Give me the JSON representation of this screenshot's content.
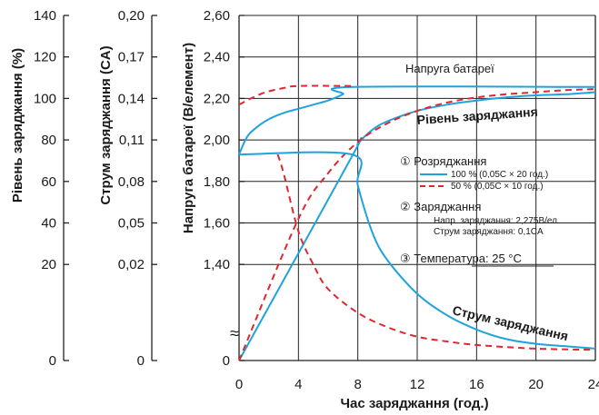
{
  "chart_data": {
    "type": "line",
    "title": "",
    "xlabel": "Час заряджання (год.)",
    "x_ticks": [
      "0",
      "4",
      "8",
      "12",
      "16",
      "20",
      "24"
    ],
    "xlim": [
      0,
      24
    ],
    "grid": true,
    "axes": [
      {
        "key": "capacity",
        "label": "Рівень заряджання (%)",
        "ticks": [
          [
            "140",
            2.6
          ],
          [
            "120",
            2.4
          ],
          [
            "100",
            2.2
          ],
          [
            "80",
            2.0
          ],
          [
            "60",
            1.8
          ],
          [
            "40",
            1.6
          ],
          [
            "20",
            1.4
          ],
          [
            "0",
            1.0
          ]
        ],
        "range": [
          0,
          140
        ]
      },
      {
        "key": "current",
        "label": "Струм заряджання (CA)",
        "ticks": [
          [
            "0,20",
            2.6
          ],
          [
            "0,17",
            2.4
          ],
          [
            "0,14",
            2.2
          ],
          [
            "0,11",
            2.0
          ],
          [
            "0,08",
            1.8
          ],
          [
            "0,05",
            1.6
          ],
          [
            "0,02",
            1.4
          ],
          [
            "0",
            1.0
          ]
        ],
        "range": [
          0,
          0.2
        ]
      },
      {
        "key": "voltage",
        "label": "Напруга батареї (В/елемент)",
        "ticks": [
          [
            "2,60",
            2.6
          ],
          [
            "2,40",
            2.4
          ],
          [
            "2,20",
            2.2
          ],
          [
            "2,00",
            2.0
          ],
          [
            "1,80",
            1.8
          ],
          [
            "1,60",
            1.6
          ],
          [
            "1,40",
            1.4
          ],
          [
            "0",
            1.0
          ]
        ],
        "range": [
          1.4,
          2.6
        ]
      }
    ],
    "series": [
      {
        "curve": "voltage",
        "style": "solid",
        "color": "#1fa3dc",
        "points": [
          [
            0,
            1.93
          ],
          [
            0.5,
            2.01
          ],
          [
            1,
            2.05
          ],
          [
            2,
            2.1
          ],
          [
            3,
            2.13
          ],
          [
            4,
            2.15
          ],
          [
            5,
            2.17
          ],
          [
            6,
            2.19
          ],
          [
            7,
            2.22
          ],
          [
            7.6,
            2.255
          ],
          [
            24,
            2.255
          ]
        ]
      },
      {
        "curve": "voltage",
        "style": "dashed",
        "color": "#e0262f",
        "points": [
          [
            0,
            2.17
          ],
          [
            0.8,
            2.2
          ],
          [
            1.8,
            2.23
          ],
          [
            3,
            2.25
          ],
          [
            4,
            2.26
          ],
          [
            7.6,
            2.26
          ]
        ]
      },
      {
        "curve": "capacity",
        "style": "solid",
        "color": "#1fa3dc",
        "points": [
          [
            0,
            1.0
          ],
          [
            7.6,
            1.92
          ],
          [
            8,
            1.98
          ],
          [
            9,
            2.05
          ],
          [
            10,
            2.09
          ],
          [
            12,
            2.14
          ],
          [
            14,
            2.17
          ],
          [
            16,
            2.19
          ],
          [
            18,
            2.205
          ],
          [
            20,
            2.215
          ],
          [
            22,
            2.22
          ],
          [
            24,
            2.23
          ]
        ]
      },
      {
        "curve": "capacity",
        "style": "dashed",
        "color": "#e0262f",
        "points": [
          [
            0,
            1.0
          ],
          [
            4,
            1.62
          ],
          [
            6,
            1.84
          ],
          [
            8,
            1.99
          ],
          [
            10,
            2.08
          ],
          [
            12,
            2.14
          ],
          [
            14,
            2.18
          ],
          [
            16,
            2.205
          ],
          [
            18,
            2.22
          ],
          [
            20,
            2.23
          ],
          [
            22,
            2.24
          ],
          [
            24,
            2.245
          ]
        ]
      },
      {
        "curve": "current",
        "style": "solid",
        "color": "#1fa3dc",
        "points": [
          [
            0,
            1.93
          ],
          [
            7.6,
            1.93
          ],
          [
            8,
            1.78
          ],
          [
            9,
            1.55
          ],
          [
            10,
            1.42
          ],
          [
            12,
            1.28
          ],
          [
            14,
            1.19
          ],
          [
            16,
            1.13
          ],
          [
            18,
            1.09
          ],
          [
            20,
            1.07
          ],
          [
            22,
            1.06
          ],
          [
            24,
            1.05
          ]
        ]
      },
      {
        "curve": "current",
        "style": "dashed",
        "color": "#e0262f",
        "points": [
          [
            2.6,
            1.93
          ],
          [
            3,
            1.84
          ],
          [
            4,
            1.56
          ],
          [
            5,
            1.4
          ],
          [
            6,
            1.3
          ],
          [
            8,
            1.2
          ],
          [
            10,
            1.14
          ],
          [
            12,
            1.1
          ],
          [
            14,
            1.08
          ],
          [
            16,
            1.065
          ],
          [
            20,
            1.05
          ],
          [
            24,
            1.045
          ]
        ]
      }
    ],
    "legend": {
      "battery_voltage_label": "Напруга батареї",
      "charge_level_label": "Рівень заряджання",
      "charge_current_label": "Струм заряджання",
      "discharge_title": "① Розряджання",
      "discharge_100": "100 % (0,05C × 20 год.)",
      "discharge_50": "50 % (0,05C × 10 год.)",
      "charging_title": "② Заряджання",
      "charging_voltage": "Напр. заряджання: 2,275В/ел.",
      "charging_current": "Струм заряджання: 0,1CA",
      "temperature": "③ Температура: 25 °C",
      "axis_break": "≈"
    }
  }
}
